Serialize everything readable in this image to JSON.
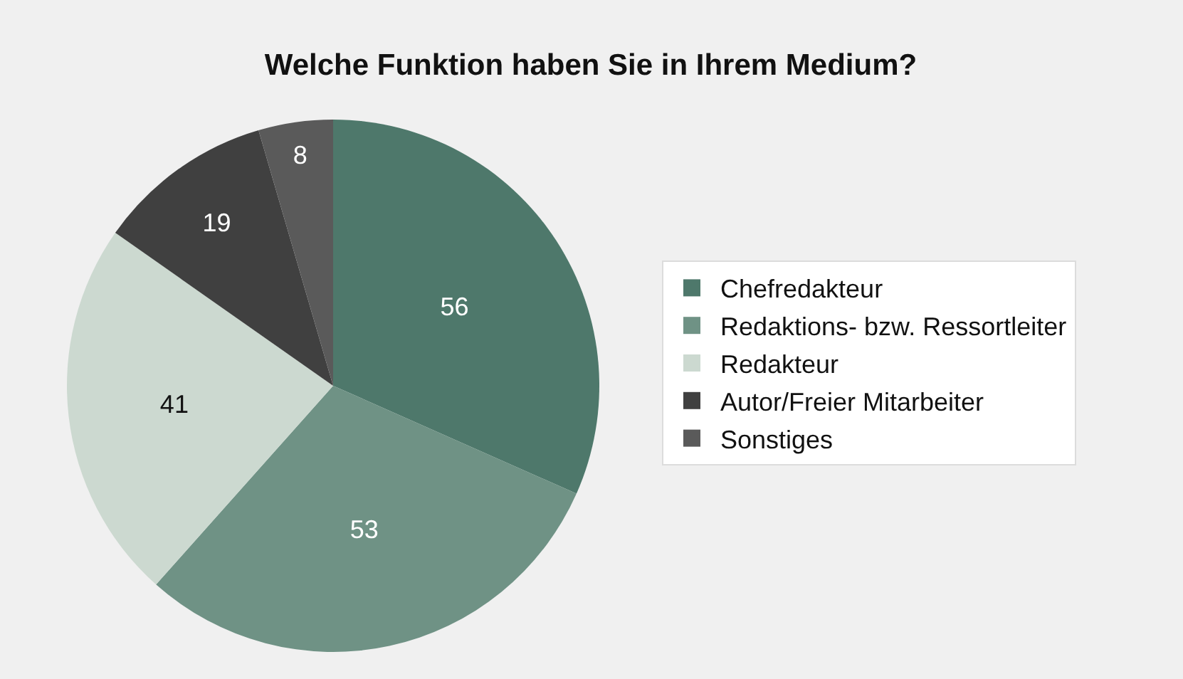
{
  "chart_data": {
    "type": "pie",
    "title": "Welche Funktion haben Sie in Ihrem Medium?",
    "categories": [
      "Chefredakteur",
      "Redaktions- bzw. Ressortleiter",
      "Redakteur",
      "Autor/Freier Mitarbeiter",
      "Sonstiges"
    ],
    "values": [
      56,
      53,
      41,
      19,
      8
    ],
    "colors": [
      "#4e786b",
      "#6f9285",
      "#ccd9d0",
      "#404040",
      "#5a5a5a"
    ],
    "data_labels": true,
    "legend": "right"
  }
}
